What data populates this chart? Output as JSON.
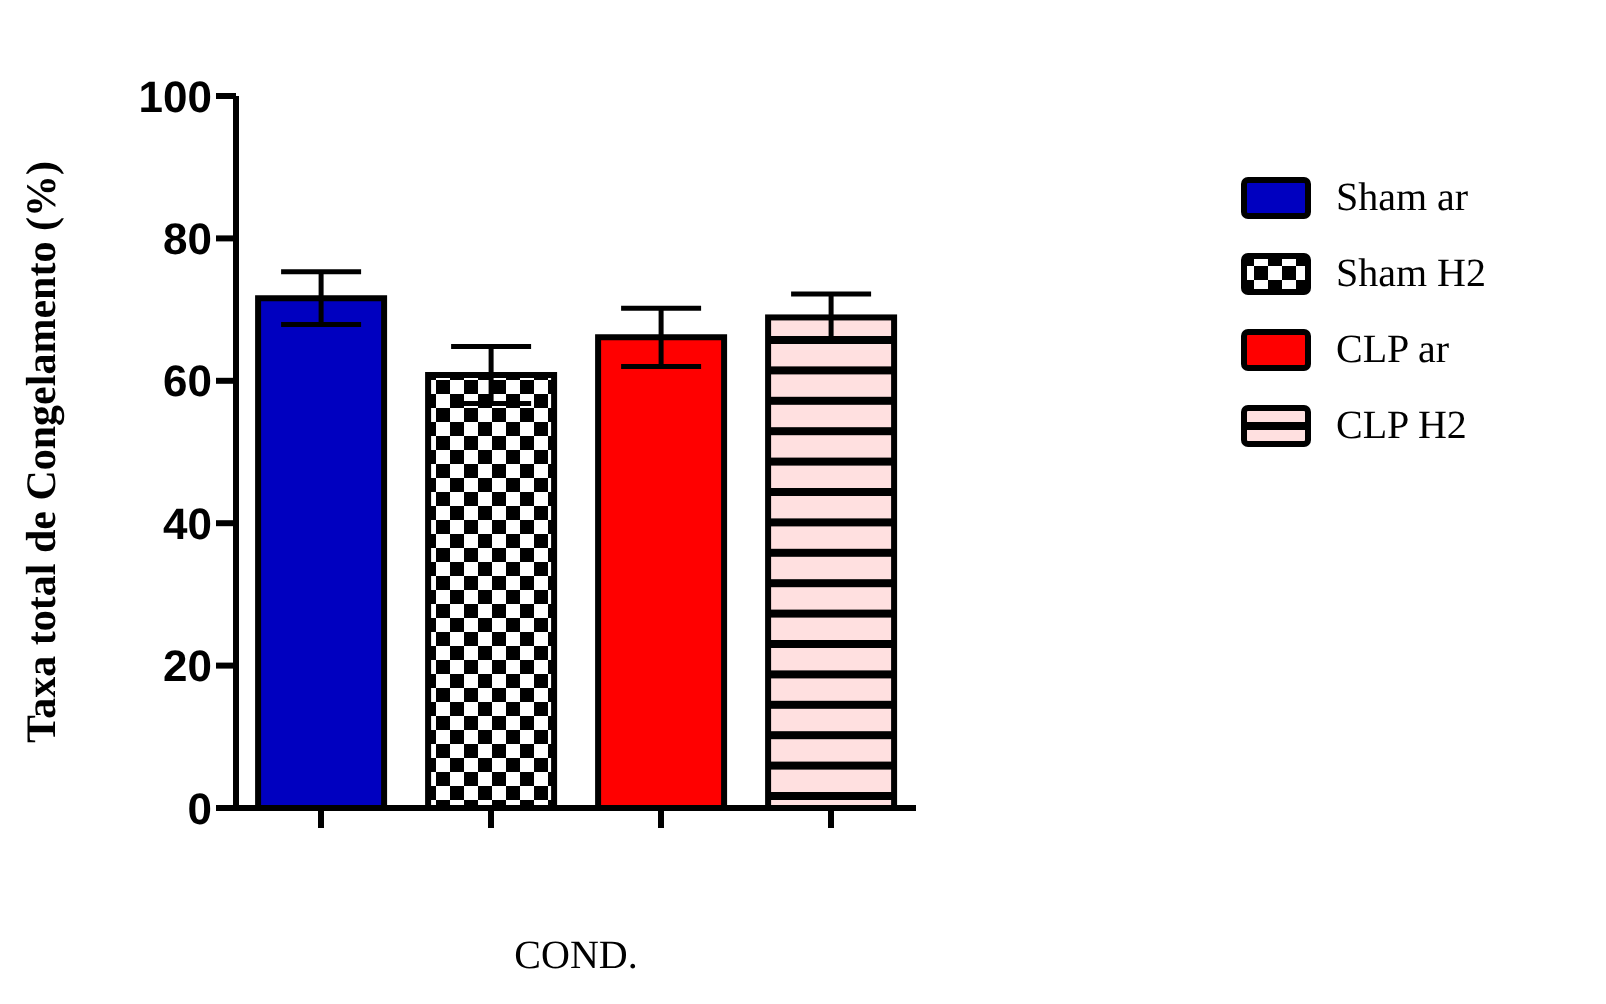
{
  "chart_data": {
    "type": "bar",
    "xlabel": "COND.",
    "ylabel": "Taxa total de Congelamento (%)",
    "categories": [
      null,
      null,
      null,
      null
    ],
    "series": [
      {
        "name": "Sham ar",
        "color": "#0000c0",
        "values": [
          71.6,
          null,
          null,
          null
        ],
        "errors": [
          3.7,
          null,
          null,
          null
        ]
      },
      {
        "name": "Sham H2",
        "color": "#000000",
        "values": [
          null,
          60.8,
          null,
          null
        ],
        "errors": [
          null,
          4.0,
          null,
          null
        ]
      },
      {
        "name": "CLP ar",
        "color": "#ff0000",
        "values": [
          null,
          null,
          66.1,
          null
        ],
        "errors": [
          null,
          null,
          4.1,
          null
        ]
      },
      {
        "name": "CLP H2",
        "color": "#ffe0e0",
        "values": [
          null,
          null,
          null,
          68.9
        ],
        "errors": [
          null,
          null,
          null,
          3.3
        ]
      }
    ],
    "ylim": [
      0,
      100
    ],
    "yticks": [
      0,
      20,
      40,
      60,
      80,
      100
    ],
    "grid": false,
    "legend": "right"
  }
}
